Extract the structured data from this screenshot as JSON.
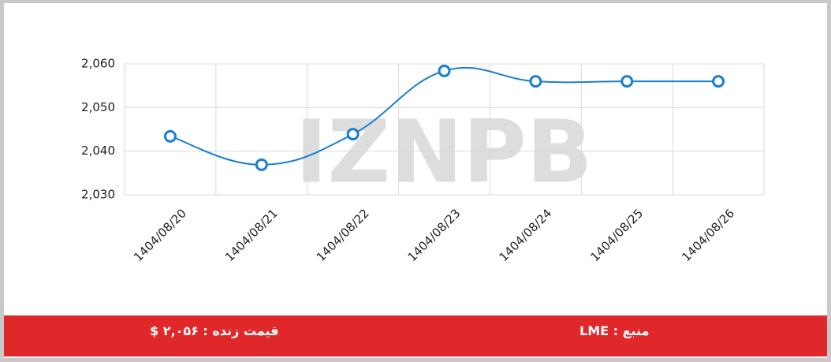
{
  "chart_data": {
    "type": "line",
    "watermark": "IZNPB",
    "categories": [
      "1404/08/20",
      "1404/08/21",
      "1404/08/22",
      "1404/08/23",
      "1404/08/24",
      "1404/08/25",
      "1404/08/26"
    ],
    "values": [
      2043.4,
      2036.9,
      2043.9,
      2058.4,
      2056,
      2056,
      2056
    ],
    "color": "#1a7fd0",
    "ylim": [
      2030,
      2060
    ],
    "yticks": [
      {
        "value": 2030,
        "label": "2,030"
      },
      {
        "value": 2040,
        "label": "2,040"
      },
      {
        "value": 2050,
        "label": "2,050"
      },
      {
        "value": 2060,
        "label": "2,060"
      }
    ],
    "grid": true
  },
  "footer": {
    "live_price": "قیمت زنده : ۲,۰۵۶ $",
    "source": "منبع : LME"
  }
}
